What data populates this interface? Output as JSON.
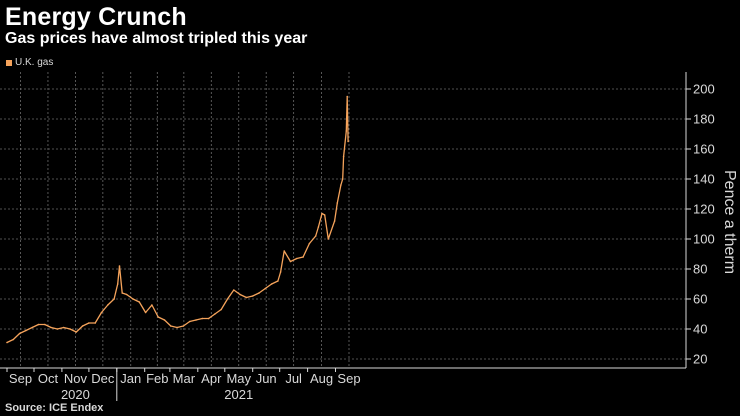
{
  "header": {
    "title": "Energy Crunch",
    "subtitle": "Gas prices have almost tripled this year"
  },
  "footer": {
    "source": "Source: ICE Endex"
  },
  "colors": {
    "series": "#f5a35b",
    "grid": "#6b6b6b",
    "text": "#d9d9d9",
    "background": "#000000"
  },
  "chart_data": {
    "type": "line",
    "title": "Energy Crunch",
    "subtitle": "Gas prices have almost tripled this year",
    "ylabel": "Pence a therm",
    "xlabel": "",
    "y_axis_position": "right",
    "ylim": [
      20,
      210
    ],
    "yticks": [
      20,
      40,
      60,
      80,
      100,
      120,
      140,
      160,
      180,
      200
    ],
    "grid": true,
    "legend": {
      "position": "top-left",
      "entries": [
        "U.K. gas"
      ]
    },
    "x_month_labels": [
      "Sep",
      "Oct",
      "Nov",
      "Dec",
      "Jan",
      "Feb",
      "Mar",
      "Apr",
      "May",
      "Jun",
      "Jul",
      "Aug",
      "Sep"
    ],
    "x_year_labels": [
      {
        "label": "2020",
        "under": "Nov"
      },
      {
        "label": "2021",
        "under": "May"
      }
    ],
    "series": [
      {
        "name": "U.K. gas",
        "x": [
          "2020-09-01",
          "2020-09-08",
          "2020-09-15",
          "2020-09-22",
          "2020-09-29",
          "2020-10-06",
          "2020-10-13",
          "2020-10-20",
          "2020-10-27",
          "2020-11-03",
          "2020-11-10",
          "2020-11-17",
          "2020-11-24",
          "2020-12-01",
          "2020-12-08",
          "2020-12-15",
          "2020-12-22",
          "2020-12-29",
          "2021-01-02",
          "2021-01-04",
          "2021-01-07",
          "2021-01-12",
          "2021-01-19",
          "2021-01-26",
          "2021-02-02",
          "2021-02-09",
          "2021-02-16",
          "2021-02-23",
          "2021-03-02",
          "2021-03-09",
          "2021-03-16",
          "2021-03-23",
          "2021-03-30",
          "2021-04-06",
          "2021-04-13",
          "2021-04-20",
          "2021-04-27",
          "2021-05-04",
          "2021-05-11",
          "2021-05-18",
          "2021-05-25",
          "2021-06-01",
          "2021-06-08",
          "2021-06-15",
          "2021-06-22",
          "2021-06-29",
          "2021-07-02",
          "2021-07-06",
          "2021-07-13",
          "2021-07-20",
          "2021-07-27",
          "2021-08-03",
          "2021-08-10",
          "2021-08-13",
          "2021-08-17",
          "2021-08-20",
          "2021-08-24",
          "2021-08-31",
          "2021-09-03",
          "2021-09-07",
          "2021-09-09",
          "2021-09-10",
          "2021-09-13",
          "2021-09-14",
          "2021-09-15"
        ],
        "y": [
          31,
          33,
          37,
          39,
          41,
          43,
          43,
          41,
          40,
          41,
          40,
          38,
          42,
          44,
          44,
          51,
          56,
          60,
          70,
          82,
          64,
          63,
          60,
          58,
          51,
          56,
          48,
          46,
          42,
          41,
          42,
          45,
          46,
          47,
          47,
          50,
          53,
          60,
          66,
          63,
          61,
          62,
          64,
          67,
          70,
          72,
          78,
          92,
          85,
          87,
          88,
          97,
          102,
          108,
          117,
          116,
          100,
          112,
          124,
          136,
          140,
          155,
          172,
          195,
          165
        ]
      }
    ]
  }
}
